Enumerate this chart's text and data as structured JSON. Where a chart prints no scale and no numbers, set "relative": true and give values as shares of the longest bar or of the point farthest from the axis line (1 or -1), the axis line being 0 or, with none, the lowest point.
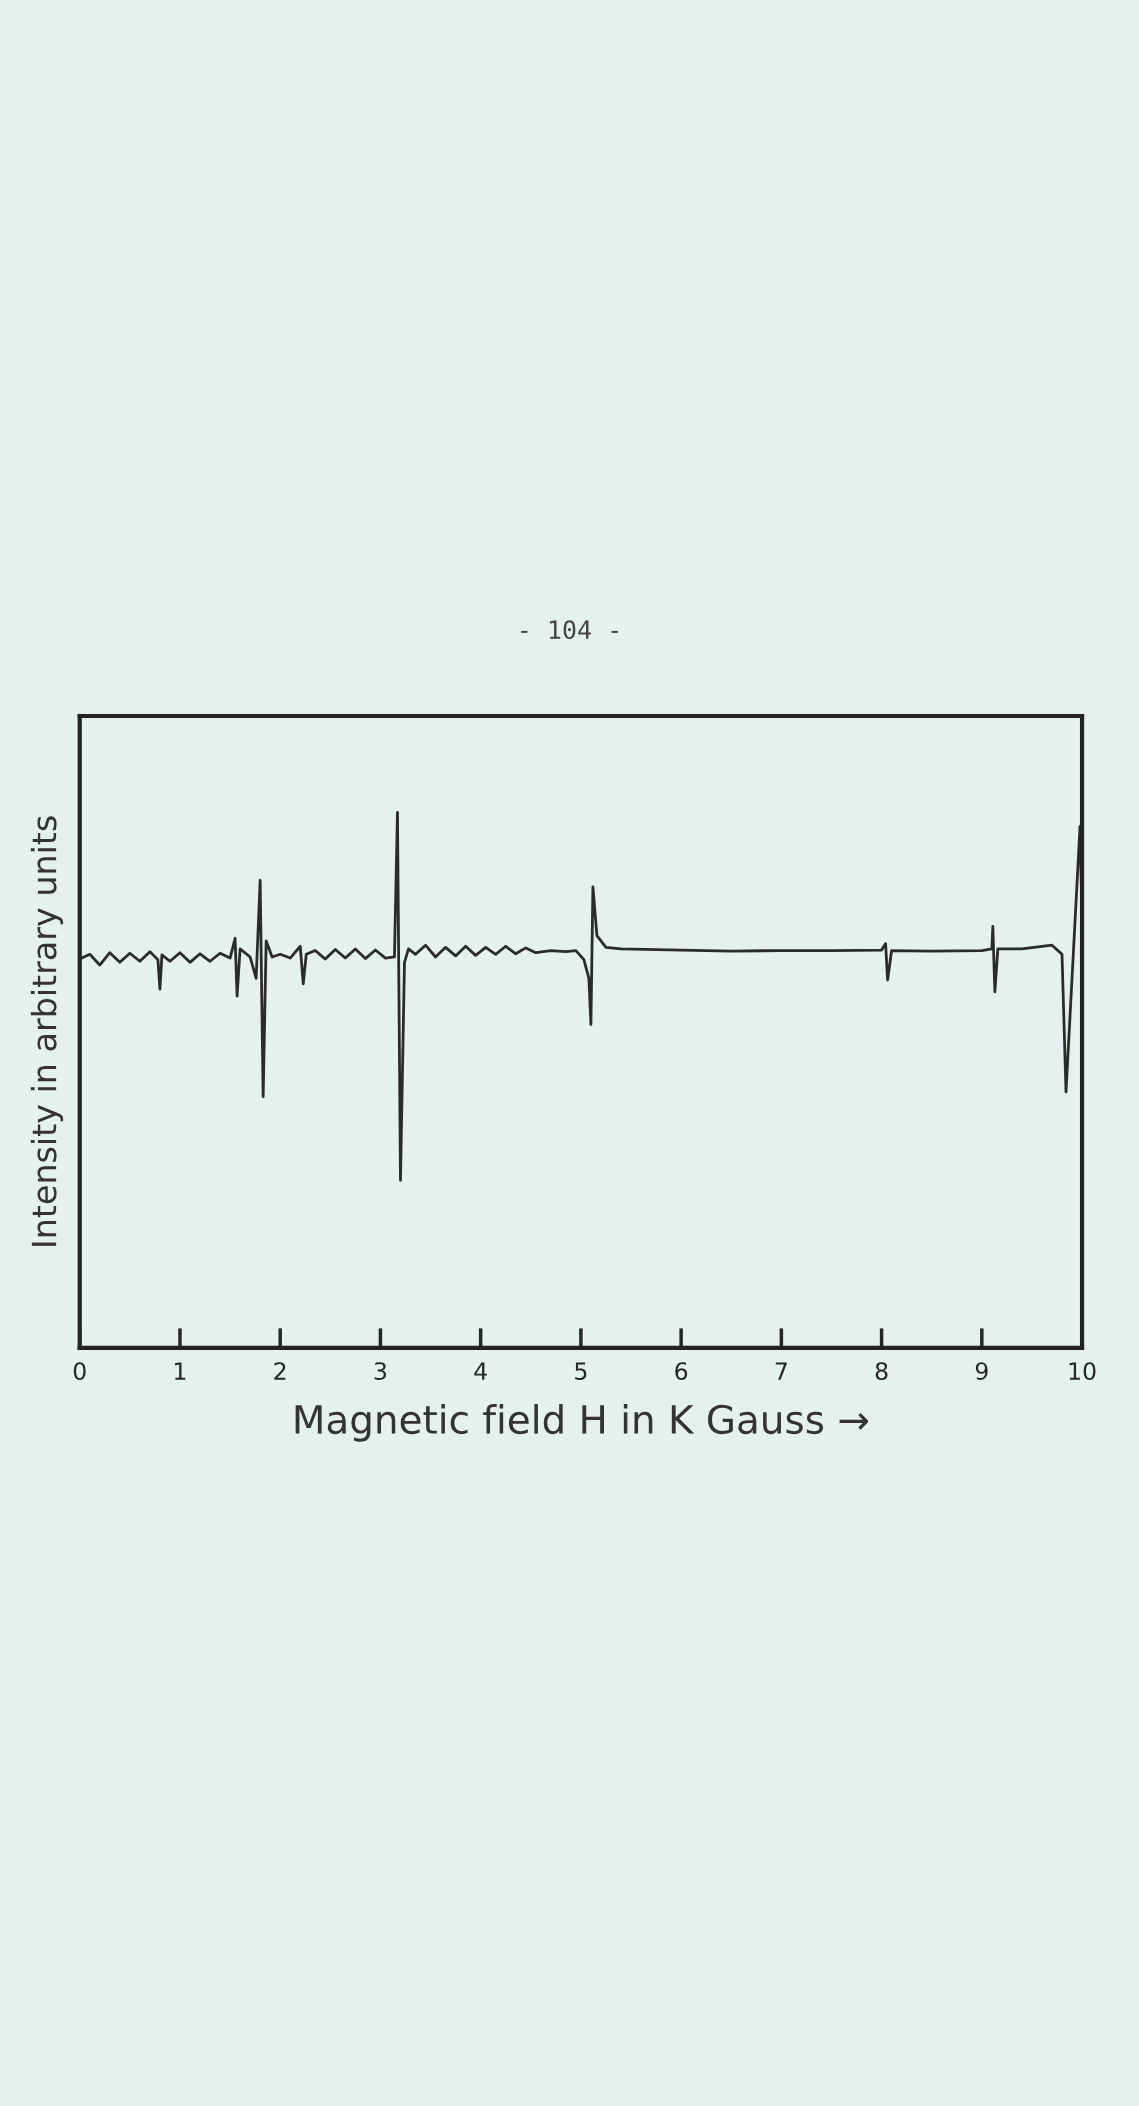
{
  "chart_data": {
    "type": "line",
    "xlabel": "Magnetic field H in K Gauss →",
    "ylabel": "Intensity in arbitrary units",
    "annotations": [
      "- 104 -"
    ],
    "relative": true,
    "xlim": [
      0,
      10
    ],
    "xticks": [
      0,
      1,
      2,
      3,
      4,
      5,
      6,
      7,
      8,
      9,
      10
    ],
    "tick_labels": "x",
    "x": [
      0.0,
      0.1,
      0.2,
      0.3,
      0.4,
      0.5,
      0.6,
      0.7,
      0.78,
      0.8,
      0.82,
      0.9,
      1.0,
      1.1,
      1.2,
      1.3,
      1.4,
      1.5,
      1.55,
      1.57,
      1.6,
      1.7,
      1.76,
      1.8,
      1.83,
      1.86,
      1.92,
      2.0,
      2.1,
      2.2,
      2.23,
      2.26,
      2.35,
      2.45,
      2.55,
      2.65,
      2.75,
      2.85,
      2.95,
      3.05,
      3.14,
      3.17,
      3.2,
      3.24,
      3.28,
      3.35,
      3.45,
      3.55,
      3.65,
      3.75,
      3.85,
      3.95,
      4.05,
      4.15,
      4.25,
      4.35,
      4.45,
      4.55,
      4.7,
      4.85,
      4.95,
      5.03,
      5.08,
      5.1,
      5.12,
      5.16,
      5.25,
      5.4,
      6.0,
      6.5,
      7.0,
      7.5,
      8.0,
      8.04,
      8.06,
      8.1,
      8.5,
      9.0,
      9.1,
      9.11,
      9.13,
      9.16,
      9.4,
      9.7,
      9.8,
      9.84,
      9.98,
      10.0
    ],
    "series": [
      {
        "color": "#2b2b2b",
        "values": [
          0.726,
          0.735,
          0.715,
          0.738,
          0.72,
          0.737,
          0.722,
          0.74,
          0.725,
          0.67,
          0.734,
          0.722,
          0.738,
          0.72,
          0.736,
          0.722,
          0.737,
          0.728,
          0.765,
          0.657,
          0.745,
          0.73,
          0.69,
          0.873,
          0.469,
          0.76,
          0.73,
          0.735,
          0.728,
          0.75,
          0.68,
          0.735,
          0.742,
          0.726,
          0.744,
          0.728,
          0.745,
          0.727,
          0.743,
          0.728,
          0.73,
          1.0,
          0.313,
          0.72,
          0.745,
          0.735,
          0.752,
          0.73,
          0.748,
          0.732,
          0.75,
          0.733,
          0.748,
          0.735,
          0.75,
          0.736,
          0.747,
          0.738,
          0.742,
          0.74,
          0.742,
          0.725,
          0.69,
          0.604,
          0.861,
          0.77,
          0.748,
          0.745,
          0.743,
          0.741,
          0.742,
          0.742,
          0.743,
          0.755,
          0.687,
          0.742,
          0.741,
          0.742,
          0.745,
          0.787,
          0.665,
          0.745,
          0.745,
          0.752,
          0.735,
          0.478,
          0.974,
          0.8
        ]
      }
    ]
  }
}
